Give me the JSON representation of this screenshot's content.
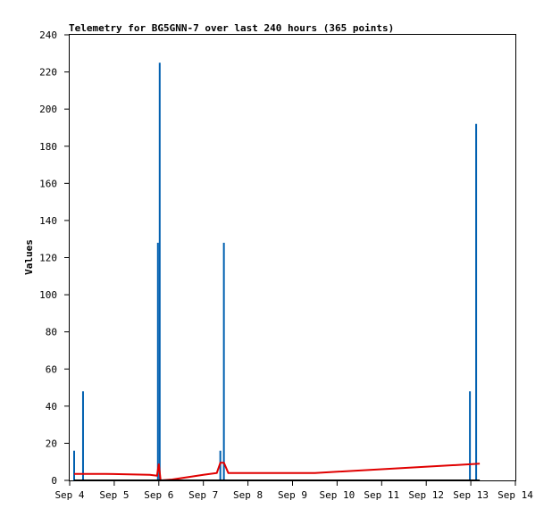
{
  "chart_data": {
    "type": "line",
    "title": "Telemetry for BG5GNN-7 over last 240 hours (365 points)",
    "xlabel": "",
    "ylabel": "Values",
    "x_ticks": [
      "Sep 4",
      "Sep 5",
      "Sep 6",
      "Sep 7",
      "Sep 8",
      "Sep 9",
      "Sep 10",
      "Sep 11",
      "Sep 12",
      "Sep 13",
      "Sep 14"
    ],
    "y_ticks": [
      0,
      20,
      40,
      60,
      80,
      100,
      120,
      140,
      160,
      180,
      200,
      220,
      240
    ],
    "xlim": [
      0,
      10
    ],
    "ylim": [
      0,
      240
    ],
    "grid": false,
    "series": [
      {
        "style": "impulse",
        "color": "#0060b0",
        "points": [
          {
            "x": 0.1,
            "y": 16
          },
          {
            "x": 0.3,
            "y": 48
          },
          {
            "x": 1.98,
            "y": 128
          },
          {
            "x": 2.02,
            "y": 225
          },
          {
            "x": 3.38,
            "y": 16
          },
          {
            "x": 3.46,
            "y": 128
          },
          {
            "x": 8.98,
            "y": 48
          },
          {
            "x": 9.12,
            "y": 192
          }
        ]
      },
      {
        "style": "line",
        "color": "#e00000",
        "points": [
          {
            "x": 0.1,
            "y": 3.5
          },
          {
            "x": 0.8,
            "y": 3.5
          },
          {
            "x": 1.8,
            "y": 3.0
          },
          {
            "x": 1.96,
            "y": 2.5
          },
          {
            "x": 2.0,
            "y": 9.0
          },
          {
            "x": 2.04,
            "y": 0.0
          },
          {
            "x": 2.3,
            "y": 0.5
          },
          {
            "x": 3.0,
            "y": 3.0
          },
          {
            "x": 3.3,
            "y": 4.0
          },
          {
            "x": 3.38,
            "y": 9.5
          },
          {
            "x": 3.46,
            "y": 9.5
          },
          {
            "x": 3.56,
            "y": 4.0
          },
          {
            "x": 5.5,
            "y": 4.0
          },
          {
            "x": 9.2,
            "y": 9.0
          }
        ]
      },
      {
        "style": "line",
        "color": "#000000",
        "points": [
          {
            "x": 0.1,
            "y": 0
          },
          {
            "x": 9.2,
            "y": 0
          }
        ]
      }
    ]
  }
}
